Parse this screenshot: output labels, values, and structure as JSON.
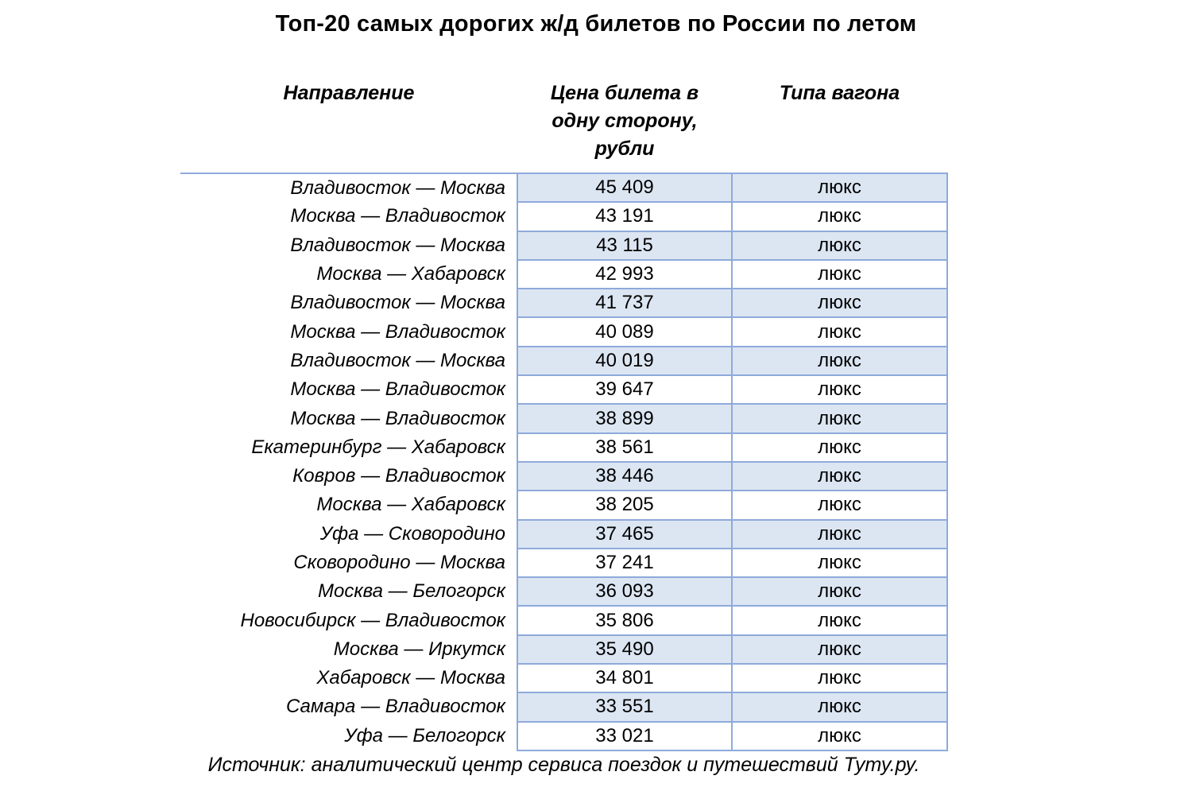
{
  "title": "Топ-20 самых дорогих ж/д билетов по России по летом",
  "header": {
    "direction": "Направление",
    "price_lines": [
      "Цена билета в",
      "одну сторону,",
      "рубли"
    ],
    "car_type": "Типа вагона"
  },
  "source": "Источник: аналитический центр сервиса поездок и путешествий Туту.ру.",
  "colors": {
    "row_shade": "#dce6f2",
    "table_border": "#8eaadb",
    "text": "#000000",
    "background": "#ffffff"
  },
  "chart_data": {
    "type": "table",
    "title": "Топ-20 самых дорогих ж/д билетов по России по летом",
    "columns": [
      "Направление",
      "Цена билета в одну сторону, рубли",
      "Типа вагона"
    ],
    "rows": [
      [
        "Владивосток — Москва",
        45409,
        "люкс"
      ],
      [
        "Москва — Владивосток",
        43191,
        "люкс"
      ],
      [
        "Владивосток — Москва",
        43115,
        "люкс"
      ],
      [
        "Москва — Хабаровск",
        42993,
        "люкс"
      ],
      [
        "Владивосток — Москва",
        41737,
        "люкс"
      ],
      [
        "Москва — Владивосток",
        40089,
        "люкс"
      ],
      [
        "Владивосток — Москва",
        40019,
        "люкс"
      ],
      [
        "Москва — Владивосток",
        39647,
        "люкс"
      ],
      [
        "Москва — Владивосток",
        38899,
        "люкс"
      ],
      [
        "Екатеринбург — Хабаровск",
        38561,
        "люкс"
      ],
      [
        "Ковров — Владивосток",
        38446,
        "люкс"
      ],
      [
        "Москва — Хабаровск",
        38205,
        "люкс"
      ],
      [
        "Уфа — Сковородино",
        37465,
        "люкс"
      ],
      [
        "Сковородино — Москва",
        37241,
        "люкс"
      ],
      [
        "Москва — Белогорск",
        36093,
        "люкс"
      ],
      [
        "Новосибирск — Владивосток",
        35806,
        "люкс"
      ],
      [
        "Москва — Иркутск",
        35490,
        "люкс"
      ],
      [
        "Хабаровск — Москва",
        34801,
        "люкс"
      ],
      [
        "Самара — Владивосток",
        33551,
        "люкс"
      ],
      [
        "Уфа — Белогорск",
        33021,
        "люкс"
      ]
    ],
    "source": "Источник: аналитический центр сервиса поездок и путешествий Туту.ру.",
    "layout": {
      "shaded_rows": "odd",
      "direction_column": "right-aligned italic, unbordered",
      "value_columns": "centered, bordered, alternating fill"
    }
  }
}
